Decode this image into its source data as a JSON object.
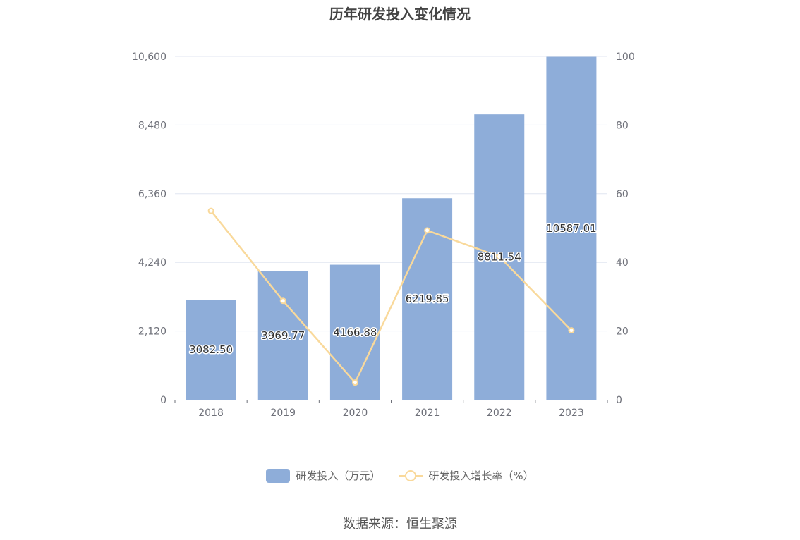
{
  "chart_data": {
    "type": "bar",
    "title": "历年研发投入变化情况",
    "categories": [
      "2018",
      "2019",
      "2020",
      "2021",
      "2022",
      "2023"
    ],
    "series": [
      {
        "name": "研发投入（万元）",
        "type": "bar",
        "axis": "left",
        "values": [
          3082.5,
          3969.77,
          4166.88,
          6219.85,
          8811.54,
          10587.01
        ],
        "labels": [
          "3082.50",
          "3969.77",
          "4166.88",
          "6219.85",
          "8811.54",
          "10587.01"
        ],
        "color": "#8eadd9"
      },
      {
        "name": "研发投入增长率（%）",
        "type": "line",
        "axis": "right",
        "values": [
          55,
          28.8,
          5,
          49.3,
          41.7,
          20.2
        ],
        "color": "#f9d99b"
      }
    ],
    "y_left": {
      "range": [
        0,
        10600
      ],
      "ticks": [
        0,
        2120,
        4240,
        6360,
        8480,
        10600
      ],
      "tick_labels": [
        "0",
        "2,120",
        "4,240",
        "6,360",
        "8,480",
        "10,600"
      ]
    },
    "y_right": {
      "range": [
        0,
        100
      ],
      "ticks": [
        0,
        20,
        40,
        60,
        80,
        100
      ],
      "tick_labels": [
        "0",
        "20",
        "40",
        "60",
        "80",
        "100"
      ]
    },
    "grid": true,
    "legend_position": "bottom"
  },
  "source": "数据来源：恒生聚源"
}
